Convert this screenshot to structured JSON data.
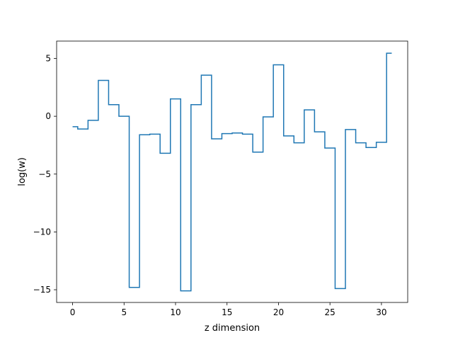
{
  "chart_data": {
    "type": "line",
    "drawstyle": "steps-mid",
    "xlabel": "z dimension",
    "ylabel": "log(w)",
    "xlim": [
      -1.55,
      32.55
    ],
    "ylim": [
      -16.1,
      6.5
    ],
    "xticks": [
      0,
      5,
      10,
      15,
      20,
      25,
      30
    ],
    "xtick_labels": [
      "0",
      "5",
      "10",
      "15",
      "20",
      "25",
      "30"
    ],
    "yticks": [
      5,
      0,
      -5,
      -10,
      -15
    ],
    "ytick_labels": [
      "5",
      "0",
      "−5",
      "−10",
      "−15"
    ],
    "grid": false,
    "legend": "none",
    "series": [
      {
        "color": "#1f77b4",
        "x": [
          0,
          1,
          2,
          3,
          4,
          5,
          6,
          7,
          8,
          9,
          10,
          11,
          12,
          13,
          14,
          15,
          16,
          17,
          18,
          19,
          20,
          21,
          22,
          23,
          24,
          25,
          26,
          27,
          28,
          29,
          30,
          31
        ],
        "y": [
          -0.9,
          -1.1,
          -0.35,
          3.1,
          1.0,
          0.0,
          -14.8,
          -1.6,
          -1.55,
          -3.2,
          1.5,
          -15.1,
          1.0,
          3.55,
          -1.95,
          -1.5,
          -1.45,
          -1.55,
          -3.1,
          -0.05,
          4.45,
          -1.7,
          -2.3,
          0.55,
          -1.35,
          -2.75,
          -14.9,
          -1.15,
          -2.3,
          -2.7,
          -2.25,
          5.45
        ]
      }
    ]
  }
}
